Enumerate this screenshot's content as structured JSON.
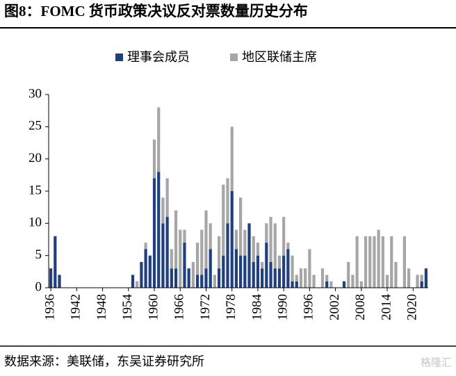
{
  "chart_data": {
    "type": "stacked_bar",
    "title": "图8：FOMC 货币政策决议反对票数量历史分布",
    "source": "数据来源：美联储，东吴证券研究所",
    "watermark": "格隆汇",
    "x": [
      1936,
      1937,
      1938,
      1939,
      1940,
      1941,
      1942,
      1943,
      1944,
      1945,
      1946,
      1947,
      1948,
      1949,
      1950,
      1951,
      1952,
      1953,
      1954,
      1955,
      1956,
      1957,
      1958,
      1959,
      1960,
      1961,
      1962,
      1963,
      1964,
      1965,
      1966,
      1967,
      1968,
      1969,
      1970,
      1971,
      1972,
      1973,
      1974,
      1975,
      1976,
      1977,
      1978,
      1979,
      1980,
      1981,
      1982,
      1983,
      1984,
      1985,
      1986,
      1987,
      1988,
      1989,
      1990,
      1991,
      1992,
      1993,
      1994,
      1995,
      1996,
      1997,
      1998,
      1999,
      2000,
      2001,
      2002,
      2003,
      2004,
      2005,
      2006,
      2007,
      2008,
      2009,
      2010,
      2011,
      2012,
      2013,
      2014,
      2015,
      2016,
      2017,
      2018,
      2019,
      2020,
      2021,
      2022,
      2023
    ],
    "series": [
      {
        "name": "理事会成员",
        "color": "#1f3f7f",
        "values": [
          3,
          8,
          2,
          0,
          0,
          0,
          0,
          0,
          0,
          0,
          0,
          0,
          0,
          0,
          0,
          0,
          0,
          0,
          0,
          2,
          0,
          4,
          6,
          5,
          17,
          18,
          10,
          11,
          3,
          3,
          0,
          7,
          3,
          0,
          2,
          2,
          3,
          6,
          0,
          3,
          5,
          10,
          15,
          6,
          5,
          5,
          10,
          4,
          5,
          3,
          7,
          4,
          3,
          3,
          5,
          6,
          1,
          1,
          0,
          0,
          0,
          0,
          0,
          0,
          1,
          0,
          0,
          0,
          1,
          0,
          0,
          0,
          0,
          0,
          0,
          0,
          0,
          0,
          0,
          0,
          0,
          0,
          0,
          0,
          0,
          0,
          1,
          3
        ]
      },
      {
        "name": "地区联储主席",
        "color": "#a6a6a6",
        "values": [
          0,
          0,
          0,
          0,
          0,
          0,
          0,
          0,
          0,
          0,
          0,
          0,
          0,
          0,
          0,
          0,
          0,
          0,
          0,
          0,
          1,
          0,
          1,
          0,
          6,
          10,
          4,
          6,
          3,
          9,
          9,
          2,
          0,
          4,
          5,
          7,
          9,
          4,
          2,
          5,
          11,
          7,
          10,
          3,
          9,
          4,
          0,
          4,
          2,
          1,
          3,
          7,
          7,
          2,
          6,
          1,
          4,
          1,
          3,
          3,
          6,
          2,
          0,
          3,
          1,
          1,
          0,
          0,
          0,
          4,
          2,
          8,
          1,
          8,
          8,
          8,
          9,
          8,
          2,
          8,
          4,
          0,
          8,
          3,
          0,
          2,
          1,
          0
        ]
      }
    ],
    "xlim": [
      1935.5,
      2023.5
    ],
    "xticks": [
      1936,
      1942,
      1948,
      1954,
      1960,
      1966,
      1972,
      1978,
      1984,
      1990,
      1996,
      2002,
      2008,
      2014,
      2020
    ],
    "ylim": [
      0,
      30
    ],
    "yticks": [
      0,
      5,
      10,
      15,
      20,
      25,
      30
    ],
    "grid": false,
    "legend": "top"
  }
}
